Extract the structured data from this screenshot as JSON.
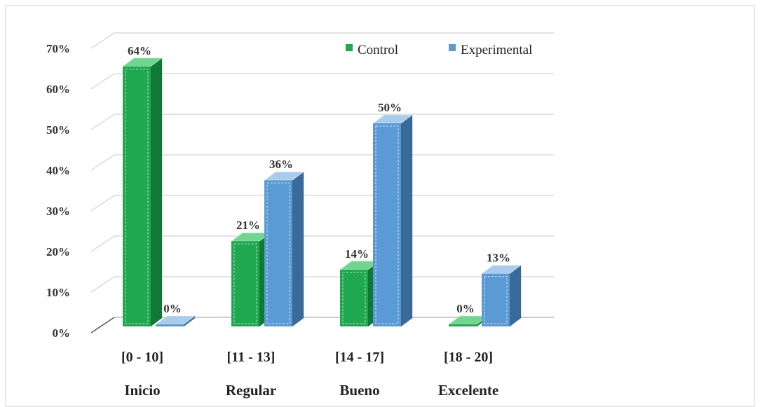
{
  "chart_data": {
    "type": "bar",
    "style": "3d-clustered-column",
    "categories": [
      "[0 - 10]",
      "[11 - 13]",
      "[14 - 17]",
      "[18 - 20]"
    ],
    "category_names": [
      "Inicio",
      "Regular",
      "Bueno",
      "Excelente"
    ],
    "series": [
      {
        "name": "Control",
        "values": [
          64,
          21,
          14,
          0
        ],
        "labels": [
          "64%",
          "21%",
          "14%",
          "0%"
        ],
        "color": "#1fa84f",
        "side_color": "#0f7a35",
        "top_color": "#6fd68f"
      },
      {
        "name": "Experimental",
        "values": [
          0,
          36,
          50,
          13
        ],
        "labels": [
          "0%",
          "36%",
          "50%",
          "13%"
        ],
        "color": "#5b9bd5",
        "side_color": "#3a6a99",
        "top_color": "#a9cbec"
      }
    ],
    "y_tick_labels": [
      "0%",
      "10%",
      "20%",
      "30%",
      "40%",
      "50%",
      "60%",
      "70%"
    ],
    "ylim": [
      0,
      70
    ],
    "y_unit": "%",
    "grid": true,
    "legend_position": "top-right"
  }
}
